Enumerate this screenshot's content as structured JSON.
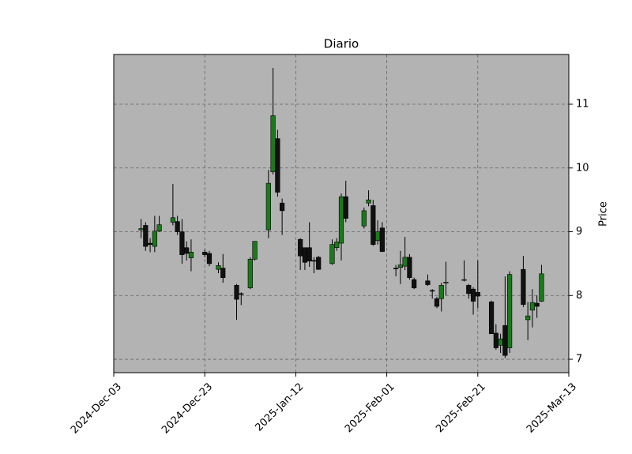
{
  "chart_data": {
    "type": "candlestick",
    "title": "Diario",
    "y_label": "Price",
    "x": [
      "2024-12-09",
      "2024-12-10",
      "2024-12-11",
      "2024-12-12",
      "2024-12-13",
      "2024-12-16",
      "2024-12-17",
      "2024-12-18",
      "2024-12-19",
      "2024-12-20",
      "2024-12-23",
      "2024-12-24",
      "2024-12-26",
      "2024-12-27",
      "2024-12-30",
      "2024-12-31",
      "2025-01-02",
      "2025-01-03",
      "2025-01-06",
      "2025-01-07",
      "2025-01-08",
      "2025-01-09",
      "2025-01-13",
      "2025-01-14",
      "2025-01-15",
      "2025-01-16",
      "2025-01-17",
      "2025-01-20",
      "2025-01-21",
      "2025-01-22",
      "2025-01-23",
      "2025-01-27",
      "2025-01-28",
      "2025-01-29",
      "2025-01-30",
      "2025-01-31",
      "2025-02-03",
      "2025-02-04",
      "2025-02-05",
      "2025-02-06",
      "2025-02-07",
      "2025-02-10",
      "2025-02-11",
      "2025-02-12",
      "2025-02-13",
      "2025-02-14",
      "2025-02-18",
      "2025-02-19",
      "2025-02-20",
      "2025-02-21",
      "2025-02-24",
      "2025-02-25",
      "2025-02-26",
      "2025-02-27",
      "2025-02-28",
      "2025-03-03",
      "2025-03-04",
      "2025-03-05",
      "2025-03-06",
      "2025-03-07"
    ],
    "open": [
      9.03,
      9.1,
      8.82,
      8.77,
      9.01,
      9.15,
      9.16,
      9.0,
      8.75,
      8.59,
      8.68,
      8.66,
      8.41,
      8.43,
      8.16,
      8.03,
      8.12,
      8.57,
      9.03,
      9.94,
      10.46,
      9.45,
      8.88,
      8.75,
      8.75,
      8.55,
      8.6,
      8.5,
      8.75,
      8.82,
      9.55,
      9.09,
      9.45,
      9.41,
      8.86,
      9.06,
      8.43,
      8.44,
      8.46,
      8.6,
      8.25,
      8.23,
      8.08,
      7.95,
      7.95,
      8.2,
      8.24,
      8.16,
      8.1,
      8.05,
      7.9,
      7.41,
      7.22,
      7.53,
      7.18,
      8.41,
      7.62,
      7.77,
      7.88,
      7.91
    ],
    "high": [
      9.2,
      9.15,
      8.9,
      9.25,
      9.25,
      9.75,
      9.25,
      9.2,
      8.85,
      8.88,
      8.72,
      8.7,
      8.52,
      8.65,
      8.18,
      8.05,
      8.6,
      8.85,
      9.97,
      11.57,
      10.6,
      9.52,
      8.9,
      8.75,
      9.15,
      8.6,
      8.62,
      8.88,
      8.9,
      9.6,
      9.8,
      9.38,
      9.65,
      9.5,
      9.18,
      9.15,
      8.48,
      8.7,
      8.92,
      8.65,
      8.28,
      8.33,
      8.1,
      7.98,
      8.2,
      8.53,
      8.55,
      8.18,
      8.13,
      8.55,
      7.92,
      7.55,
      7.4,
      8.3,
      8.38,
      8.62,
      7.9,
      8.1,
      8.0,
      8.48
    ],
    "low": [
      8.9,
      8.7,
      8.68,
      8.68,
      9.0,
      9.1,
      8.95,
      8.5,
      8.55,
      8.38,
      8.6,
      8.46,
      8.35,
      8.2,
      7.62,
      7.85,
      8.1,
      8.55,
      8.9,
      9.9,
      9.55,
      8.95,
      8.4,
      8.4,
      8.45,
      8.35,
      8.4,
      8.48,
      8.7,
      8.55,
      9.15,
      9.05,
      9.4,
      8.78,
      8.8,
      8.68,
      8.3,
      8.18,
      8.4,
      8.25,
      8.1,
      8.15,
      7.95,
      7.8,
      7.75,
      8.0,
      8.22,
      7.95,
      7.7,
      7.8,
      7.4,
      7.15,
      7.1,
      7.02,
      7.1,
      7.82,
      7.3,
      7.5,
      7.65,
      7.9
    ],
    "close": [
      9.05,
      8.77,
      8.8,
      9.01,
      9.11,
      9.22,
      9.0,
      8.64,
      8.66,
      8.68,
      8.64,
      8.5,
      8.47,
      8.28,
      7.94,
      8.02,
      8.57,
      8.85,
      9.76,
      10.82,
      9.62,
      9.33,
      8.62,
      8.52,
      8.54,
      8.54,
      8.41,
      8.8,
      8.84,
      9.55,
      9.21,
      9.33,
      9.5,
      8.8,
      9.0,
      8.69,
      8.42,
      8.48,
      8.6,
      8.28,
      8.12,
      8.17,
      8.07,
      7.83,
      8.16,
      8.21,
      8.25,
      8.03,
      7.91,
      7.99,
      7.4,
      7.18,
      7.32,
      7.06,
      8.33,
      7.86,
      7.68,
      7.89,
      7.83,
      8.34
    ],
    "up_color": "#1a7a1a",
    "down_color": "#111111",
    "background": "#b3b3b3",
    "grid": true,
    "y_axis_side": "right",
    "xlim": [
      "2024-12-03",
      "2025-03-13"
    ],
    "xticks": [
      {
        "value": "2024-12-03",
        "label": "2024-Dec-03"
      },
      {
        "value": "2024-12-23",
        "label": "2024-Dec-23"
      },
      {
        "value": "2025-01-12",
        "label": "2025-Jan-12"
      },
      {
        "value": "2025-02-01",
        "label": "2025-Feb-01"
      },
      {
        "value": "2025-02-21",
        "label": "2025-Feb-21"
      },
      {
        "value": "2025-03-13",
        "label": "2025-Mar-13"
      }
    ],
    "ylim": [
      6.79,
      11.78
    ],
    "yticks": [
      7,
      8,
      9,
      10,
      11
    ]
  }
}
